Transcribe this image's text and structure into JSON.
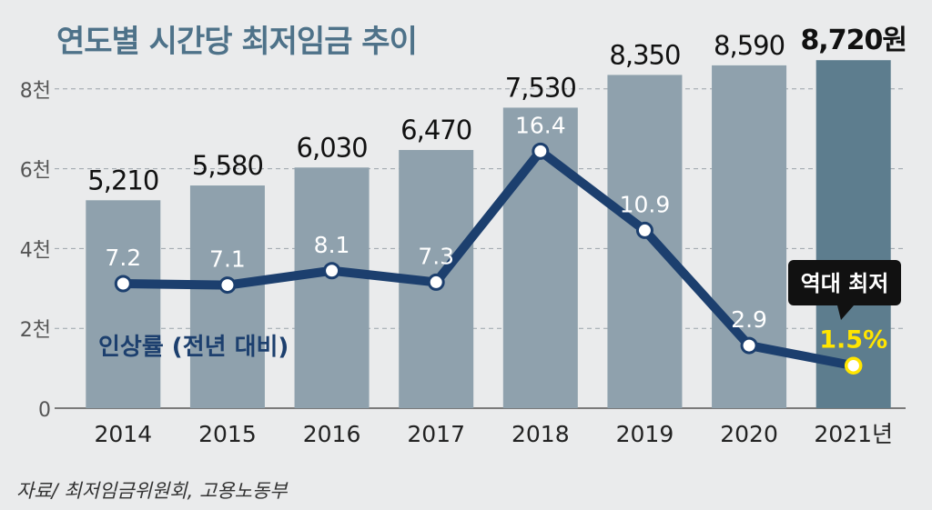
{
  "chart_data": {
    "type": "bar",
    "title": "연도별 시간당 최저임금 추이",
    "categories": [
      "2014",
      "2015",
      "2016",
      "2017",
      "2018",
      "2019",
      "2020",
      "2021년"
    ],
    "series": [
      {
        "values": [
          5210,
          5580,
          6030,
          6470,
          7530,
          8350,
          8590,
          8720
        ],
        "labels": [
          "5,210",
          "5,580",
          "6,030",
          "6,470",
          "7,530",
          "8,350",
          "8,590",
          "8,720원"
        ]
      },
      {
        "name": "인상률 (전년 대비)",
        "type": "line",
        "values": [
          7.2,
          7.1,
          8.1,
          7.3,
          16.4,
          10.9,
          2.9,
          1.5
        ],
        "labels": [
          "7.2",
          "7.1",
          "8.1",
          "7.3",
          "16.4",
          "10.9",
          "2.9",
          "1.5%"
        ]
      }
    ],
    "yticks": [
      "0",
      "2천",
      "4천",
      "6천",
      "8천"
    ],
    "ylim": [
      0,
      10000
    ],
    "grid": true,
    "callout": "역대 최저",
    "colors": {
      "bar": "#8fa1ad",
      "bar_highlight": "#5d7d8e",
      "line": "#1c3f6e",
      "highlight_text": "#ffe500",
      "title": "#4e7289"
    }
  },
  "source": "자료/ 최저임금위원회, 고용노동부"
}
